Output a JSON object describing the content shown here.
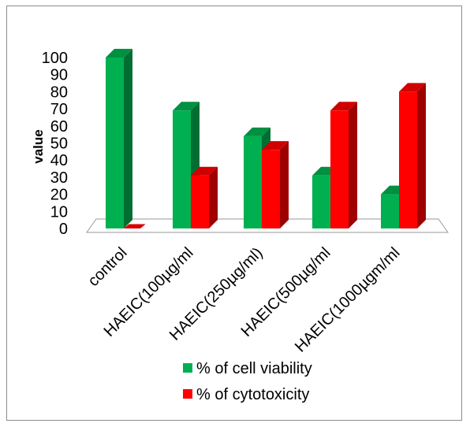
{
  "chart_data": {
    "type": "bar",
    "ylabel": "value",
    "ylim": [
      0,
      100
    ],
    "yticks": [
      "0",
      "10",
      "20",
      "30",
      "40",
      "50",
      "60",
      "70",
      "80",
      "90",
      "100"
    ],
    "categories": [
      "control",
      "HAEIC(100µg/ml",
      "HAEIC(250µg/ml)",
      "HAEIC(500µg/ml",
      "HAEIC(1000µgm/ml"
    ],
    "series": [
      {
        "name": "% of cell viability",
        "color": "#00b050",
        "values": [
          100,
          69,
          54,
          31,
          20
        ]
      },
      {
        "name": "% of cytotoxicity",
        "color": "#ff0000",
        "values": [
          0,
          31,
          46,
          69,
          80
        ]
      }
    ],
    "legend_position": "bottom",
    "grid": false,
    "style": "3d-column"
  }
}
